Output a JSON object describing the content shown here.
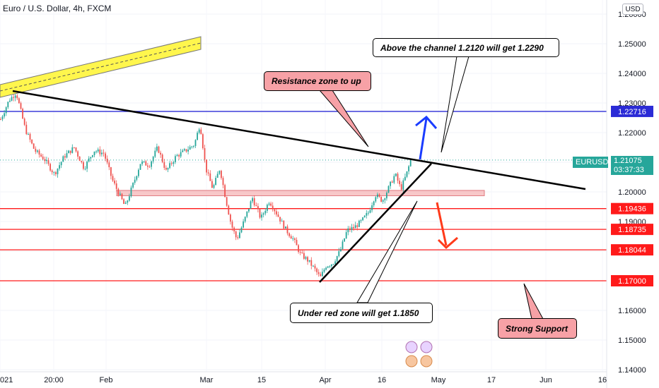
{
  "header": {
    "title": "Euro / U.S. Dollar, 4h, FXCM",
    "currency": "USD"
  },
  "chart_data": {
    "type": "candlestick",
    "symbol": "EURUSD",
    "last_price": "1.21075",
    "countdown": "03:37:33",
    "ylim": [
      1.14,
      1.26
    ],
    "y_ticks": [
      "1.26000",
      "1.25000",
      "1.24000",
      "1.23000",
      "1.22000",
      "1.21000",
      "1.20000",
      "1.19000",
      "1.18000",
      "1.17000",
      "1.16000",
      "1.15000",
      "1.14000"
    ],
    "x_ticks": [
      "021",
      "20:00",
      "Feb",
      "Mar",
      "15",
      "Apr",
      "16",
      "May",
      "17",
      "Jun",
      "16"
    ],
    "price_levels": [
      {
        "label": "1.22716",
        "value": 1.22716,
        "color": "#2b2bd6"
      },
      {
        "label": "1.19436",
        "value": 1.19436,
        "color": "#ff1a1a"
      },
      {
        "label": "1.18735",
        "value": 1.18735,
        "color": "#ff1a1a"
      },
      {
        "label": "1.18044",
        "value": 1.18044,
        "color": "#ff1a1a"
      },
      {
        "label": "1.17000",
        "value": 1.17,
        "color": "#ff1a1a"
      }
    ],
    "resistance_zone": [
      1.1987,
      1.2005
    ],
    "price_path": [
      [
        0,
        1.2245
      ],
      [
        12,
        1.231
      ],
      [
        22,
        1.2335
      ],
      [
        35,
        1.221
      ],
      [
        48,
        1.214
      ],
      [
        62,
        1.211
      ],
      [
        76,
        1.206
      ],
      [
        90,
        1.212
      ],
      [
        104,
        1.215
      ],
      [
        118,
        1.208
      ],
      [
        132,
        1.214
      ],
      [
        146,
        1.213
      ],
      [
        158,
        1.204
      ],
      [
        168,
        1.199
      ],
      [
        176,
        1.195
      ],
      [
        188,
        1.203
      ],
      [
        198,
        1.21
      ],
      [
        210,
        1.209
      ],
      [
        222,
        1.215
      ],
      [
        234,
        1.207
      ],
      [
        248,
        1.212
      ],
      [
        262,
        1.214
      ],
      [
        274,
        1.216
      ],
      [
        282,
        1.223
      ],
      [
        290,
        1.208
      ],
      [
        300,
        1.201
      ],
      [
        310,
        1.208
      ],
      [
        318,
        1.198
      ],
      [
        326,
        1.189
      ],
      [
        334,
        1.184
      ],
      [
        344,
        1.19
      ],
      [
        356,
        1.198
      ],
      [
        368,
        1.191
      ],
      [
        380,
        1.197
      ],
      [
        392,
        1.192
      ],
      [
        404,
        1.187
      ],
      [
        414,
        1.184
      ],
      [
        424,
        1.179
      ],
      [
        434,
        1.177
      ],
      [
        444,
        1.174
      ],
      [
        452,
        1.171
      ],
      [
        460,
        1.175
      ],
      [
        470,
        1.176
      ],
      [
        480,
        1.18
      ],
      [
        490,
        1.187
      ],
      [
        500,
        1.188
      ],
      [
        510,
        1.19
      ],
      [
        520,
        1.193
      ],
      [
        530,
        1.199
      ],
      [
        540,
        1.197
      ],
      [
        550,
        1.202
      ],
      [
        558,
        1.206
      ],
      [
        566,
        1.201
      ],
      [
        574,
        1.206
      ],
      [
        580,
        1.2107
      ]
    ]
  },
  "annotations": {
    "note_channel": "Above the channel 1.2120 will get 1.2290",
    "note_resistance": "Resistance zone to up",
    "note_red_zone": "Under red zone will get 1.1850",
    "note_support": "Strong Support"
  },
  "colors": {
    "up": "#26a69a",
    "down": "#ef5350",
    "blue": "#2b2bd6",
    "red": "#ff1a1a",
    "last_price": "#26a69a",
    "zone": "#f6b5b7",
    "yellow": "#fff64d"
  }
}
